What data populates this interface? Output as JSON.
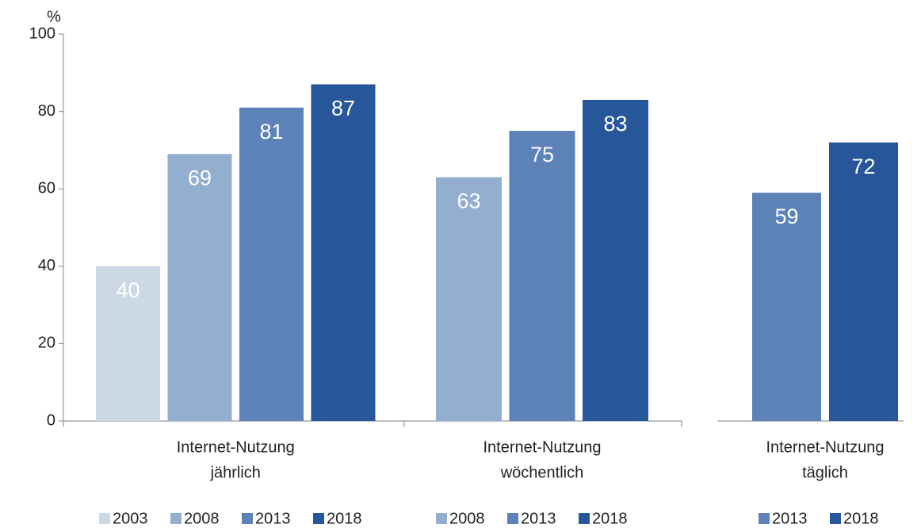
{
  "chart_data": [
    {
      "type": "bar",
      "ylabel": "%",
      "ylim": [
        0,
        100
      ],
      "yticks": [
        0,
        20,
        40,
        60,
        80,
        100
      ],
      "categories": [
        [
          "Internet-Nutzung",
          "jährlich"
        ]
      ],
      "series": [
        {
          "name": "2003",
          "color": "#cdd8e6",
          "values": [
            40
          ]
        },
        {
          "name": "2008",
          "color": "#93afd0",
          "values": [
            69
          ]
        },
        {
          "name": "2013",
          "color": "#5c82b8",
          "values": [
            81
          ]
        },
        {
          "name": "2018",
          "color": "#27579a",
          "values": [
            87
          ]
        }
      ]
    },
    {
      "type": "bar",
      "ylim": [
        0,
        100
      ],
      "categories": [
        [
          "Internet-Nutzung",
          "wöchentlich"
        ]
      ],
      "series": [
        {
          "name": "2008",
          "color": "#93afd0",
          "values": [
            63
          ]
        },
        {
          "name": "2013",
          "color": "#5c82b8",
          "values": [
            75
          ]
        },
        {
          "name": "2018",
          "color": "#27579a",
          "values": [
            83
          ]
        }
      ]
    },
    {
      "type": "bar",
      "ylim": [
        0,
        100
      ],
      "categories": [
        [
          "Internet-Nutzung",
          "täglich"
        ]
      ],
      "series": [
        {
          "name": "2013",
          "color": "#5c82b8",
          "values": [
            59
          ]
        },
        {
          "name": "2018",
          "color": "#27579a",
          "values": [
            72
          ]
        }
      ]
    }
  ]
}
